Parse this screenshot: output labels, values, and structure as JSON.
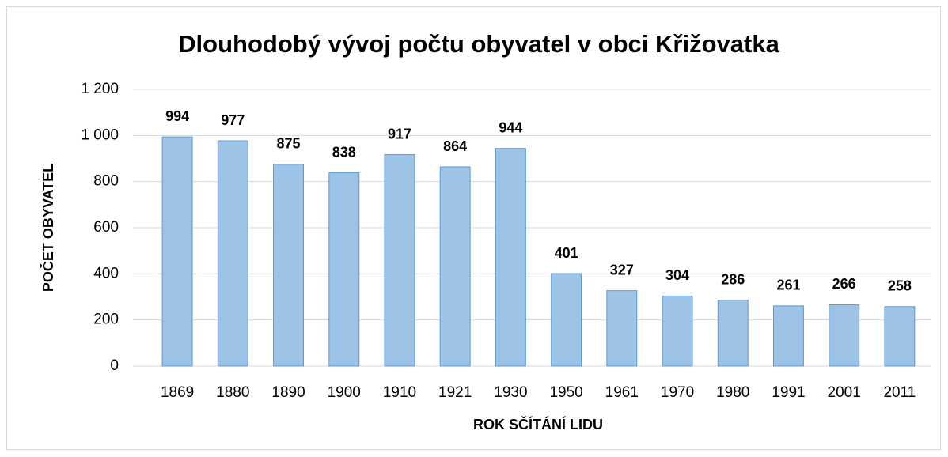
{
  "chart_data": {
    "type": "bar",
    "title": "Dlouhodobý vývoj počtu obyvatel v obci Křižovatka",
    "x_label": "ROK SČÍTÁNÍ LIDU",
    "y_label": "POČET OBYVATEL",
    "categories": [
      "1869",
      "1880",
      "1890",
      "1900",
      "1910",
      "1921",
      "1930",
      "1950",
      "1961",
      "1970",
      "1980",
      "1991",
      "2001",
      "2011"
    ],
    "values": [
      994,
      977,
      875,
      838,
      917,
      864,
      944,
      401,
      327,
      304,
      286,
      261,
      266,
      258
    ],
    "color": "#9dc3e6",
    "edge_color": "#5b9bd5",
    "ylim": [
      0,
      1200
    ],
    "yticks": [
      0,
      200,
      400,
      600,
      800,
      {
        "value": 1000,
        "label": "1 000"
      },
      {
        "value": 1200,
        "label": "1 200"
      }
    ],
    "grid": true
  }
}
